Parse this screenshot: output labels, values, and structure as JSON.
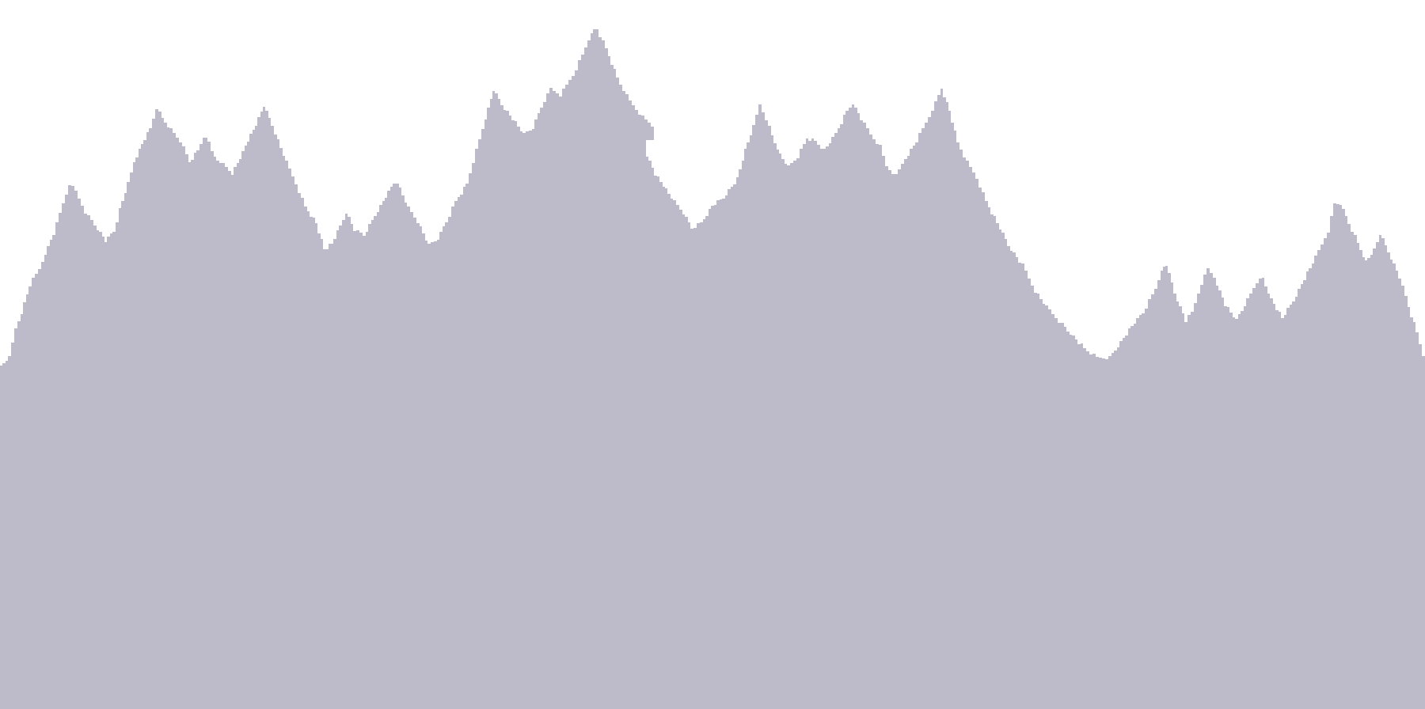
{
  "scene": {
    "kind": "mountain-silhouette",
    "background_color": "#ffffff",
    "fill_color": "#bdbbca",
    "edge_style": "jagged pixel"
  }
}
